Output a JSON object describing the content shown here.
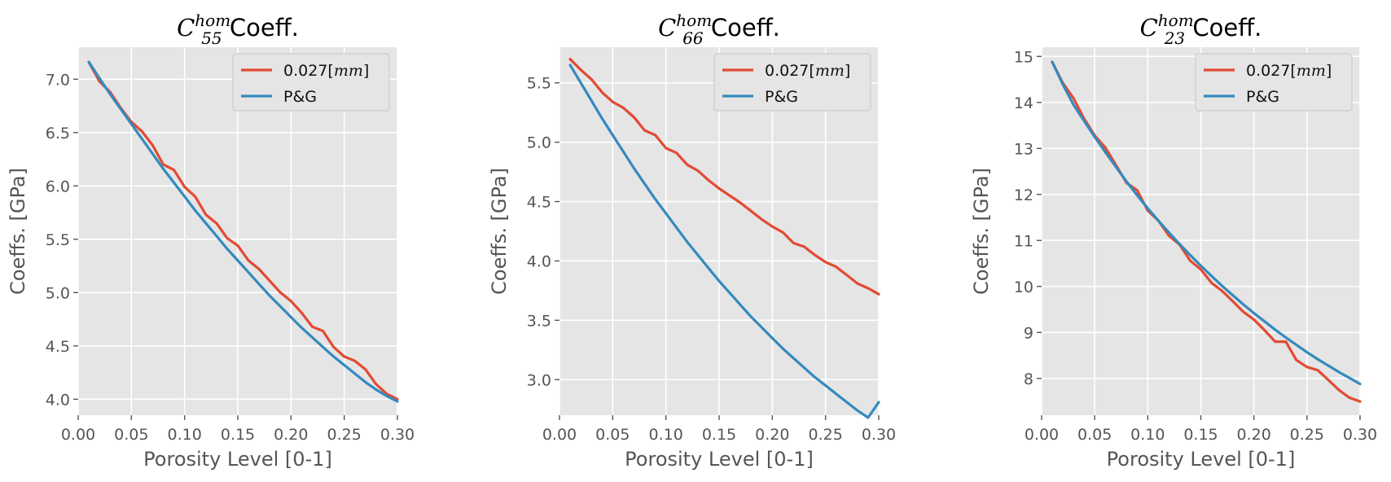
{
  "chart_data": [
    {
      "type": "line",
      "title_base": "C",
      "title_sup": "hom",
      "title_sub": "55",
      "title_rest": " Coeff.",
      "xlabel": "Porosity Level [0-1]",
      "ylabel": "Coeffs. [GPa]",
      "xlim": [
        0.0,
        0.3
      ],
      "ylim": [
        3.85,
        7.3
      ],
      "xticks": [
        "0.00",
        "0.05",
        "0.10",
        "0.15",
        "0.20",
        "0.25",
        "0.30"
      ],
      "yticks": [
        "4.0",
        "4.5",
        "5.0",
        "5.5",
        "6.0",
        "6.5",
        "7.0"
      ],
      "grid": true,
      "legend_position": "top-right",
      "x": [
        0.01,
        0.02,
        0.03,
        0.04,
        0.05,
        0.06,
        0.07,
        0.08,
        0.09,
        0.1,
        0.11,
        0.12,
        0.13,
        0.14,
        0.15,
        0.16,
        0.17,
        0.18,
        0.19,
        0.2,
        0.21,
        0.22,
        0.23,
        0.24,
        0.25,
        0.26,
        0.27,
        0.28,
        0.29,
        0.3
      ],
      "series": [
        {
          "name_prefix": "0.027[",
          "name_it": "mm",
          "name_suffix": "]",
          "color": "#e24a33",
          "values": [
            7.16,
            6.98,
            6.88,
            6.73,
            6.6,
            6.51,
            6.38,
            6.2,
            6.15,
            5.99,
            5.9,
            5.73,
            5.65,
            5.51,
            5.44,
            5.3,
            5.22,
            5.11,
            5.0,
            4.92,
            4.81,
            4.68,
            4.64,
            4.49,
            4.4,
            4.36,
            4.28,
            4.14,
            4.05,
            4.0
          ]
        },
        {
          "name": "P&G",
          "color": "#348abd",
          "values": [
            7.16,
            7.01,
            6.86,
            6.72,
            6.58,
            6.44,
            6.3,
            6.16,
            6.03,
            5.9,
            5.77,
            5.65,
            5.53,
            5.41,
            5.3,
            5.19,
            5.08,
            4.97,
            4.87,
            4.77,
            4.67,
            4.58,
            4.49,
            4.4,
            4.32,
            4.24,
            4.16,
            4.09,
            4.03,
            3.98
          ]
        }
      ]
    },
    {
      "type": "line",
      "title_base": "C",
      "title_sup": "hom",
      "title_sub": "66",
      "title_rest": " Coeff.",
      "xlabel": "Porosity Level [0-1]",
      "ylabel": "Coeffs. [GPa]",
      "xlim": [
        0.0,
        0.3
      ],
      "ylim": [
        2.7,
        5.8
      ],
      "xticks": [
        "0.00",
        "0.05",
        "0.10",
        "0.15",
        "0.20",
        "0.25",
        "0.30"
      ],
      "yticks": [
        "3.0",
        "3.5",
        "4.0",
        "4.5",
        "5.0",
        "5.5"
      ],
      "grid": true,
      "legend_position": "top-right",
      "x": [
        0.01,
        0.02,
        0.03,
        0.04,
        0.05,
        0.06,
        0.07,
        0.08,
        0.09,
        0.1,
        0.11,
        0.12,
        0.13,
        0.14,
        0.15,
        0.16,
        0.17,
        0.18,
        0.19,
        0.2,
        0.21,
        0.22,
        0.23,
        0.24,
        0.25,
        0.26,
        0.27,
        0.28,
        0.29,
        0.3
      ],
      "series": [
        {
          "name_prefix": "0.027[",
          "name_it": "mm",
          "name_suffix": "]",
          "color": "#e24a33",
          "values": [
            5.7,
            5.61,
            5.53,
            5.42,
            5.34,
            5.29,
            5.21,
            5.1,
            5.06,
            4.95,
            4.91,
            4.81,
            4.76,
            4.68,
            4.61,
            4.55,
            4.49,
            4.42,
            4.35,
            4.29,
            4.24,
            4.15,
            4.12,
            4.05,
            3.99,
            3.95,
            3.88,
            3.81,
            3.77,
            3.72
          ]
        },
        {
          "name": "P&G",
          "color": "#348abd",
          "values": [
            5.65,
            5.5,
            5.35,
            5.2,
            5.06,
            4.92,
            4.78,
            4.65,
            4.52,
            4.4,
            4.28,
            4.16,
            4.05,
            3.94,
            3.83,
            3.73,
            3.63,
            3.53,
            3.44,
            3.35,
            3.26,
            3.18,
            3.1,
            3.02,
            2.95,
            2.88,
            2.81,
            2.74,
            2.68,
            2.81
          ]
        }
      ]
    },
    {
      "type": "line",
      "title_base": "C",
      "title_sup": "hom",
      "title_sub": "23",
      "title_rest": " Coeff.",
      "xlabel": "Porosity Level [0-1]",
      "ylabel": "Coeffs. [GPa]",
      "xlim": [
        0.0,
        0.3
      ],
      "ylim": [
        7.2,
        15.2
      ],
      "xticks": [
        "0.00",
        "0.05",
        "0.10",
        "0.15",
        "0.20",
        "0.25",
        "0.30"
      ],
      "yticks": [
        "8",
        "9",
        "10",
        "11",
        "12",
        "13",
        "14",
        "15"
      ],
      "grid": true,
      "legend_position": "top-right",
      "x": [
        0.01,
        0.02,
        0.03,
        0.04,
        0.05,
        0.06,
        0.07,
        0.08,
        0.09,
        0.1,
        0.11,
        0.12,
        0.13,
        0.14,
        0.15,
        0.16,
        0.17,
        0.18,
        0.19,
        0.2,
        0.21,
        0.22,
        0.23,
        0.24,
        0.25,
        0.26,
        0.27,
        0.28,
        0.29,
        0.3
      ],
      "series": [
        {
          "name_prefix": "0.027[",
          "name_it": "mm",
          "name_suffix": "]",
          "color": "#e24a33",
          "values": [
            14.88,
            14.42,
            14.09,
            13.65,
            13.28,
            13.02,
            12.64,
            12.25,
            12.09,
            11.65,
            11.43,
            11.1,
            10.91,
            10.56,
            10.37,
            10.08,
            9.9,
            9.68,
            9.45,
            9.28,
            9.05,
            8.8,
            8.8,
            8.4,
            8.25,
            8.18,
            7.97,
            7.75,
            7.58,
            7.5
          ]
        },
        {
          "name": "P&G",
          "color": "#348abd",
          "values": [
            14.88,
            14.39,
            13.95,
            13.6,
            13.25,
            12.92,
            12.6,
            12.28,
            11.98,
            11.7,
            11.43,
            11.17,
            10.92,
            10.68,
            10.45,
            10.23,
            10.01,
            9.81,
            9.61,
            9.42,
            9.24,
            9.06,
            8.89,
            8.73,
            8.57,
            8.42,
            8.28,
            8.14,
            8.01,
            7.88
          ]
        }
      ]
    }
  ]
}
